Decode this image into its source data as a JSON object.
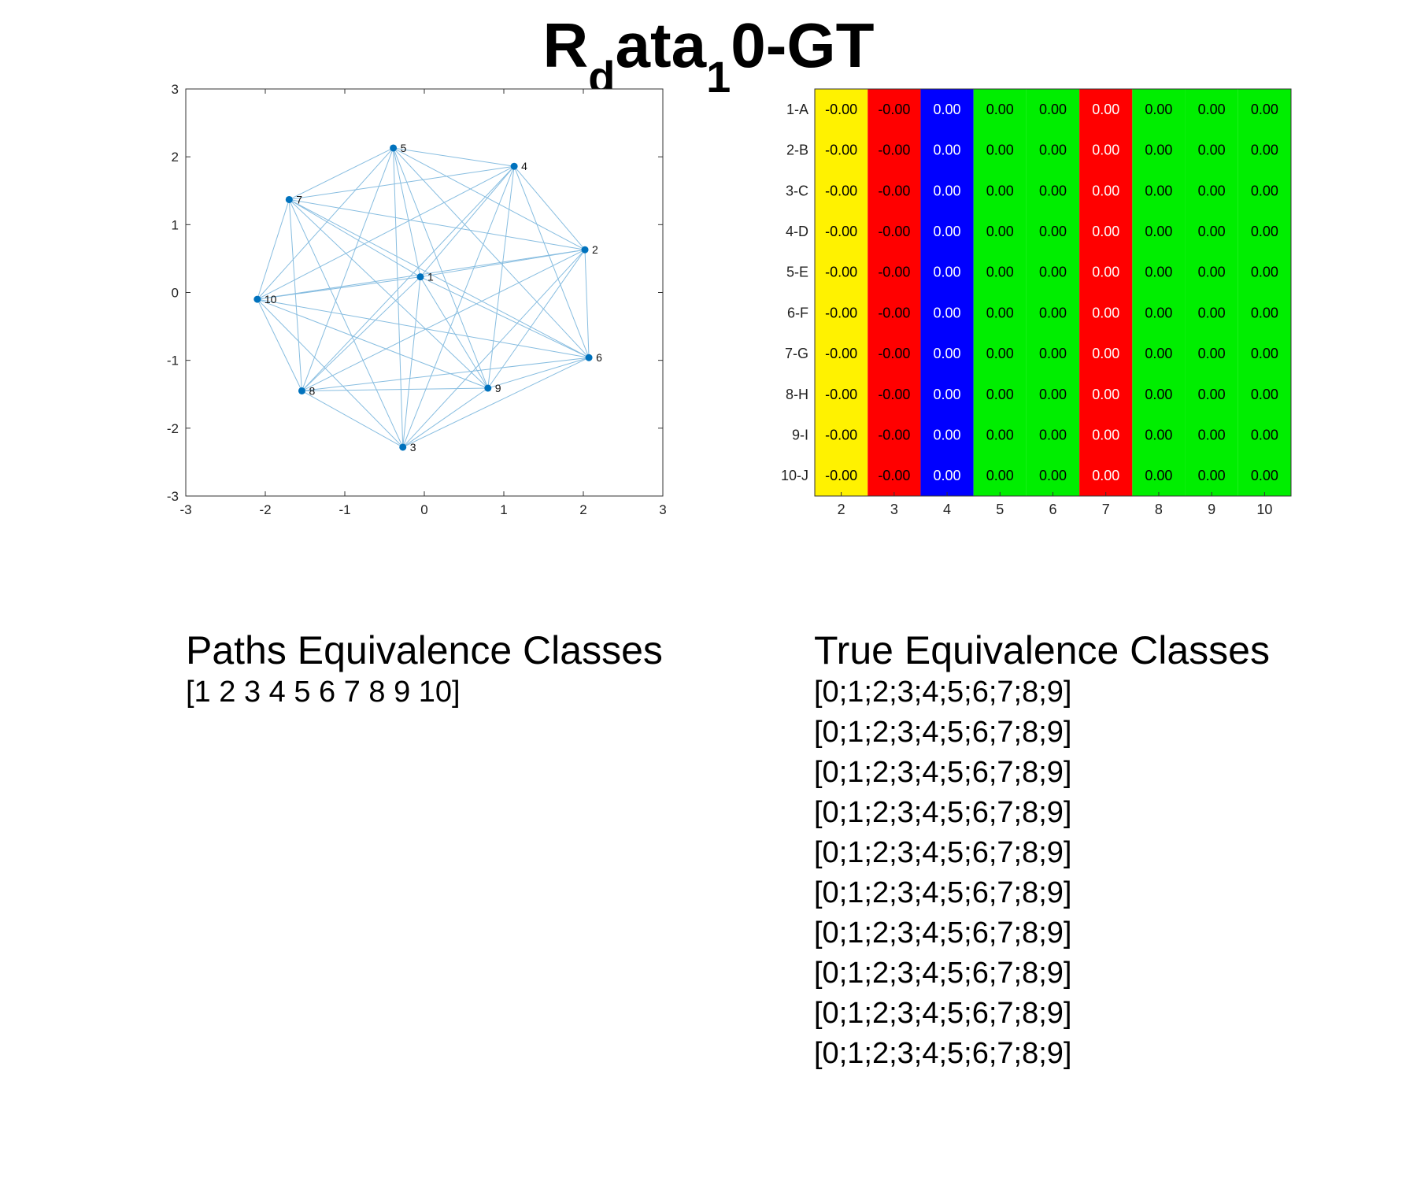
{
  "title": {
    "base": "R",
    "sub1": "d",
    "mid": "ata",
    "sub2": "1",
    "tail": "0-GT"
  },
  "chart_data": [
    {
      "type": "scatter",
      "xlim": [
        -3,
        3
      ],
      "ylim": [
        -3,
        3
      ],
      "xticks": [
        "-3",
        "-2",
        "-1",
        "0",
        "1",
        "2",
        "3"
      ],
      "yticks": [
        "3",
        "2",
        "1",
        "0",
        "-1",
        "-2",
        "-3"
      ],
      "node_color": "#0072BD",
      "edge_color": "#87BDE0",
      "nodes": [
        {
          "label": "1",
          "x": -0.05,
          "y": 0.23
        },
        {
          "label": "2",
          "x": 2.02,
          "y": 0.63
        },
        {
          "label": "3",
          "x": -0.27,
          "y": -2.28
        },
        {
          "label": "4",
          "x": 1.13,
          "y": 1.86
        },
        {
          "label": "5",
          "x": -0.39,
          "y": 2.13
        },
        {
          "label": "6",
          "x": 2.07,
          "y": -0.96
        },
        {
          "label": "7",
          "x": -1.7,
          "y": 1.37
        },
        {
          "label": "8",
          "x": -1.54,
          "y": -1.45
        },
        {
          "label": "9",
          "x": 0.8,
          "y": -1.41
        },
        {
          "label": "10",
          "x": -2.1,
          "y": -0.1
        }
      ]
    },
    {
      "type": "heatmap",
      "rows": [
        "1-A",
        "2-B",
        "3-C",
        "4-D",
        "5-E",
        "6-F",
        "7-G",
        "8-H",
        "9-I",
        "10-J"
      ],
      "columns": [
        "2",
        "3",
        "4",
        "5",
        "6",
        "7",
        "8",
        "9",
        "10"
      ],
      "column_colors": [
        "#FFF200",
        "#FF0000",
        "#0000FF",
        "#00EE00",
        "#00EE00",
        "#FF0000",
        "#00EE00",
        "#00EE00",
        "#00EE00"
      ],
      "column_text_colors": [
        "#000000",
        "#000000",
        "#FFFFFF",
        "#000000",
        "#000000",
        "#FFFFFF",
        "#000000",
        "#000000",
        "#000000"
      ],
      "values": [
        [
          "-0.00",
          "-0.00",
          "0.00",
          "0.00",
          "0.00",
          "0.00",
          "0.00",
          "0.00",
          "0.00"
        ],
        [
          "-0.00",
          "-0.00",
          "0.00",
          "0.00",
          "0.00",
          "0.00",
          "0.00",
          "0.00",
          "0.00"
        ],
        [
          "-0.00",
          "-0.00",
          "0.00",
          "0.00",
          "0.00",
          "0.00",
          "0.00",
          "0.00",
          "0.00"
        ],
        [
          "-0.00",
          "-0.00",
          "0.00",
          "0.00",
          "0.00",
          "0.00",
          "0.00",
          "0.00",
          "0.00"
        ],
        [
          "-0.00",
          "-0.00",
          "0.00",
          "0.00",
          "0.00",
          "0.00",
          "0.00",
          "0.00",
          "0.00"
        ],
        [
          "-0.00",
          "-0.00",
          "0.00",
          "0.00",
          "0.00",
          "0.00",
          "0.00",
          "0.00",
          "0.00"
        ],
        [
          "-0.00",
          "-0.00",
          "0.00",
          "0.00",
          "0.00",
          "0.00",
          "0.00",
          "0.00",
          "0.00"
        ],
        [
          "-0.00",
          "-0.00",
          "0.00",
          "0.00",
          "0.00",
          "0.00",
          "0.00",
          "0.00",
          "0.00"
        ],
        [
          "-0.00",
          "-0.00",
          "0.00",
          "0.00",
          "0.00",
          "0.00",
          "0.00",
          "0.00",
          "0.00"
        ],
        [
          "-0.00",
          "-0.00",
          "0.00",
          "0.00",
          "0.00",
          "0.00",
          "0.00",
          "0.00",
          "0.00"
        ]
      ]
    }
  ],
  "paths_section": {
    "heading": "Paths Equivalence Classes",
    "lines": [
      "[1 2 3 4 5 6 7 8 9 10]"
    ]
  },
  "true_section": {
    "heading": "True Equivalence Classes",
    "lines": [
      "[0;1;2;3;4;5;6;7;8;9]",
      "[0;1;2;3;4;5;6;7;8;9]",
      "[0;1;2;3;4;5;6;7;8;9]",
      "[0;1;2;3;4;5;6;7;8;9]",
      "[0;1;2;3;4;5;6;7;8;9]",
      "[0;1;2;3;4;5;6;7;8;9]",
      "[0;1;2;3;4;5;6;7;8;9]",
      "[0;1;2;3;4;5;6;7;8;9]",
      "[0;1;2;3;4;5;6;7;8;9]",
      "[0;1;2;3;4;5;6;7;8;9]"
    ]
  }
}
